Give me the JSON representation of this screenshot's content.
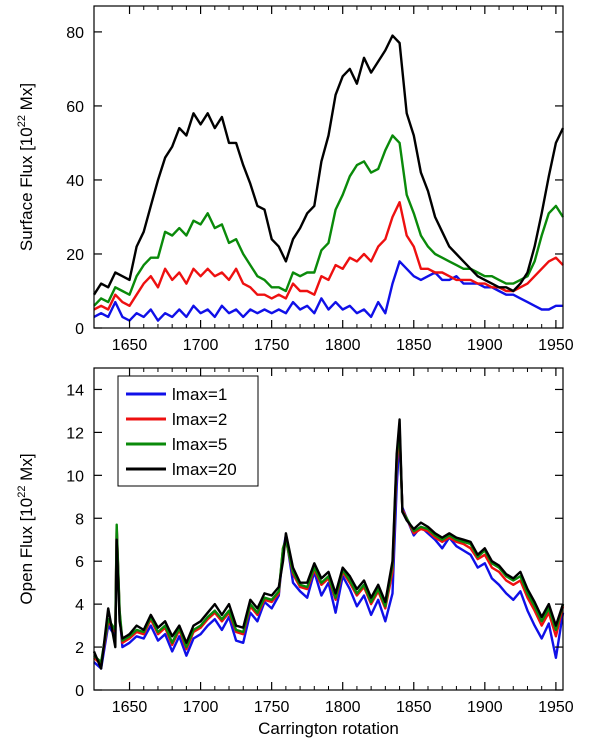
{
  "chart_data": [
    {
      "type": "line",
      "title": "",
      "xlabel": "",
      "ylabel": "Surface Flux [10",
      "ylabel_sup": "22",
      "ylabel_end": " Mx]",
      "xlim": [
        1625,
        1955
      ],
      "ylim": [
        0,
        87
      ],
      "xticks": [
        1650,
        1700,
        1750,
        1800,
        1850,
        1900,
        1950
      ],
      "yticks": [
        0,
        20,
        40,
        60,
        80
      ],
      "x": [
        1625,
        1630,
        1635,
        1640,
        1645,
        1650,
        1655,
        1660,
        1665,
        1670,
        1675,
        1680,
        1685,
        1690,
        1695,
        1700,
        1705,
        1710,
        1715,
        1720,
        1725,
        1730,
        1735,
        1740,
        1745,
        1750,
        1755,
        1760,
        1765,
        1770,
        1775,
        1780,
        1785,
        1790,
        1795,
        1800,
        1805,
        1810,
        1815,
        1820,
        1825,
        1830,
        1835,
        1840,
        1845,
        1850,
        1855,
        1860,
        1865,
        1870,
        1875,
        1880,
        1885,
        1890,
        1895,
        1900,
        1905,
        1910,
        1915,
        1920,
        1925,
        1930,
        1935,
        1940,
        1945,
        1950,
        1955
      ],
      "series": [
        {
          "name": "lmax=1",
          "color": "#1010e8",
          "values": [
            3,
            4,
            3,
            7,
            3,
            2,
            4,
            3,
            5,
            2,
            4,
            3,
            5,
            3,
            6,
            4,
            5,
            3,
            6,
            4,
            5,
            3,
            5,
            4,
            5,
            4,
            5,
            4,
            7,
            5,
            6,
            4,
            8,
            5,
            7,
            5,
            6,
            4,
            5,
            3,
            7,
            4,
            12,
            18,
            16,
            14,
            13,
            14,
            15,
            13,
            13,
            14,
            12,
            12,
            12,
            11,
            11,
            10,
            9,
            9,
            8,
            7,
            6,
            5,
            5,
            6,
            6
          ]
        },
        {
          "name": "lmax=2",
          "color": "#ee1010",
          "values": [
            5,
            6,
            5,
            9,
            7,
            6,
            9,
            12,
            14,
            11,
            16,
            13,
            15,
            12,
            16,
            14,
            16,
            14,
            15,
            13,
            16,
            12,
            11,
            9,
            9,
            8,
            9,
            8,
            12,
            10,
            10,
            9,
            14,
            13,
            17,
            16,
            19,
            18,
            20,
            18,
            22,
            24,
            30,
            34,
            25,
            22,
            16,
            16,
            15,
            15,
            14,
            13,
            13,
            13,
            12,
            12,
            11,
            11,
            10,
            10,
            11,
            12,
            14,
            16,
            18,
            19,
            17
          ]
        },
        {
          "name": "lmax=5",
          "color": "#0a8a0a",
          "values": [
            6,
            8,
            7,
            11,
            10,
            9,
            14,
            17,
            19,
            19,
            26,
            25,
            27,
            25,
            29,
            28,
            31,
            27,
            28,
            23,
            24,
            20,
            17,
            14,
            13,
            11,
            11,
            10,
            15,
            14,
            15,
            15,
            21,
            23,
            32,
            36,
            41,
            44,
            45,
            42,
            43,
            48,
            52,
            50,
            36,
            31,
            25,
            22,
            20,
            19,
            18,
            17,
            16,
            16,
            15,
            14,
            14,
            13,
            12,
            12,
            13,
            14,
            18,
            25,
            31,
            33,
            30
          ]
        },
        {
          "name": "lmax=20",
          "color": "#000000",
          "values": [
            9,
            12,
            11,
            15,
            14,
            13,
            22,
            26,
            33,
            40,
            46,
            49,
            54,
            52,
            58,
            55,
            58,
            54,
            57,
            50,
            50,
            44,
            39,
            33,
            32,
            24,
            22,
            18,
            24,
            27,
            31,
            33,
            45,
            52,
            63,
            68,
            70,
            66,
            73,
            69,
            72,
            75,
            79,
            77,
            58,
            52,
            42,
            37,
            30,
            26,
            22,
            20,
            18,
            16,
            14,
            13,
            12,
            11,
            11,
            10,
            12,
            15,
            22,
            31,
            41,
            50,
            54
          ]
        }
      ]
    },
    {
      "type": "line",
      "title": "",
      "xlabel": "Carrington rotation",
      "ylabel": "Open Flux [10",
      "ylabel_sup": "22",
      "ylabel_end": " Mx]",
      "xlim": [
        1625,
        1955
      ],
      "ylim": [
        0,
        15
      ],
      "xticks": [
        1650,
        1700,
        1750,
        1800,
        1850,
        1900,
        1950
      ],
      "yticks": [
        0,
        2,
        4,
        6,
        8,
        10,
        12,
        14
      ],
      "legend_position": "top-left",
      "x": [
        1625,
        1630,
        1635,
        1640,
        1641,
        1643,
        1645,
        1650,
        1655,
        1660,
        1665,
        1670,
        1675,
        1680,
        1685,
        1690,
        1695,
        1700,
        1705,
        1710,
        1715,
        1720,
        1725,
        1730,
        1735,
        1740,
        1745,
        1750,
        1755,
        1758,
        1760,
        1765,
        1770,
        1775,
        1780,
        1785,
        1790,
        1795,
        1800,
        1805,
        1810,
        1815,
        1820,
        1825,
        1830,
        1835,
        1838,
        1840,
        1842,
        1845,
        1850,
        1855,
        1860,
        1865,
        1870,
        1875,
        1880,
        1885,
        1890,
        1895,
        1900,
        1905,
        1910,
        1915,
        1920,
        1925,
        1930,
        1935,
        1940,
        1945,
        1950,
        1955
      ],
      "series": [
        {
          "name": "lmax=1",
          "color": "#1010e8",
          "values": [
            1.3,
            1.0,
            3.0,
            2.5,
            7.5,
            3.5,
            2.0,
            2.2,
            2.5,
            2.4,
            3.0,
            2.3,
            2.6,
            1.8,
            2.5,
            1.6,
            2.4,
            2.6,
            3.0,
            3.3,
            2.8,
            3.4,
            2.3,
            2.2,
            3.6,
            3.2,
            4.1,
            3.8,
            4.4,
            6.5,
            7.2,
            5.0,
            4.6,
            4.3,
            5.5,
            4.4,
            5.0,
            3.6,
            5.3,
            4.7,
            3.9,
            4.4,
            3.5,
            4.2,
            3.2,
            4.5,
            9.5,
            11.8,
            8.5,
            8.0,
            7.2,
            7.6,
            7.3,
            7.0,
            6.6,
            7.1,
            6.7,
            6.5,
            6.3,
            5.7,
            5.9,
            5.2,
            4.9,
            4.5,
            4.2,
            4.6,
            3.7,
            3.0,
            2.4,
            3.1,
            1.5,
            3.6
          ]
        },
        {
          "name": "lmax=2",
          "color": "#ee1010",
          "values": [
            1.5,
            1.2,
            3.2,
            2.7,
            7.6,
            3.6,
            2.2,
            2.4,
            2.7,
            2.6,
            3.3,
            2.6,
            2.9,
            2.1,
            2.8,
            1.9,
            2.7,
            2.9,
            3.3,
            3.6,
            3.2,
            3.6,
            2.7,
            2.6,
            3.9,
            3.5,
            4.2,
            4.1,
            4.5,
            6.6,
            7.0,
            5.4,
            4.8,
            4.7,
            5.6,
            4.9,
            5.2,
            4.2,
            5.5,
            5.0,
            4.4,
            4.8,
            4.0,
            4.6,
            3.8,
            5.5,
            10.5,
            12.0,
            8.4,
            8.0,
            7.3,
            7.5,
            7.4,
            7.1,
            6.9,
            7.1,
            6.9,
            6.8,
            6.6,
            6.1,
            6.3,
            5.7,
            5.5,
            5.1,
            4.9,
            5.1,
            4.3,
            3.7,
            3.0,
            3.6,
            2.5,
            3.9
          ]
        },
        {
          "name": "lmax=5",
          "color": "#0a8a0a",
          "values": [
            1.6,
            1.3,
            3.3,
            2.8,
            7.7,
            3.7,
            2.3,
            2.5,
            2.8,
            2.7,
            3.4,
            2.7,
            3.0,
            2.2,
            2.9,
            2.0,
            2.8,
            3.0,
            3.4,
            3.7,
            3.3,
            3.7,
            2.8,
            2.7,
            4.0,
            3.6,
            4.3,
            4.2,
            4.6,
            6.6,
            7.0,
            5.5,
            4.9,
            4.8,
            5.7,
            5.0,
            5.3,
            4.3,
            5.6,
            5.1,
            4.5,
            4.9,
            4.1,
            4.7,
            3.9,
            5.8,
            10.8,
            12.2,
            8.3,
            8.0,
            7.4,
            7.6,
            7.5,
            7.2,
            7.0,
            7.2,
            7.0,
            6.9,
            6.8,
            6.2,
            6.5,
            5.9,
            5.7,
            5.3,
            5.1,
            5.3,
            4.5,
            3.9,
            3.2,
            3.8,
            2.8,
            4.0
          ]
        },
        {
          "name": "lmax=20",
          "color": "#000000",
          "values": [
            1.8,
            1.0,
            3.8,
            2.0,
            7.0,
            3.2,
            2.4,
            2.6,
            3.0,
            2.8,
            3.5,
            2.9,
            3.2,
            2.5,
            3.0,
            2.2,
            3.0,
            3.2,
            3.6,
            4.0,
            3.5,
            4.0,
            3.0,
            2.9,
            4.2,
            3.8,
            4.5,
            4.4,
            4.8,
            6.0,
            7.3,
            5.7,
            5.0,
            5.0,
            5.9,
            5.2,
            5.5,
            4.5,
            5.7,
            5.3,
            4.7,
            5.1,
            4.3,
            4.9,
            4.1,
            6.0,
            11.0,
            12.6,
            8.3,
            7.9,
            7.5,
            7.8,
            7.6,
            7.3,
            7.1,
            7.3,
            7.1,
            7.0,
            6.9,
            6.3,
            6.6,
            6.0,
            5.8,
            5.4,
            5.2,
            5.5,
            4.7,
            4.1,
            3.4,
            4.0,
            3.0,
            4.0
          ]
        }
      ],
      "legend_entries": [
        "lmax=1",
        "lmax=2",
        "lmax=5",
        "lmax=20"
      ]
    }
  ]
}
